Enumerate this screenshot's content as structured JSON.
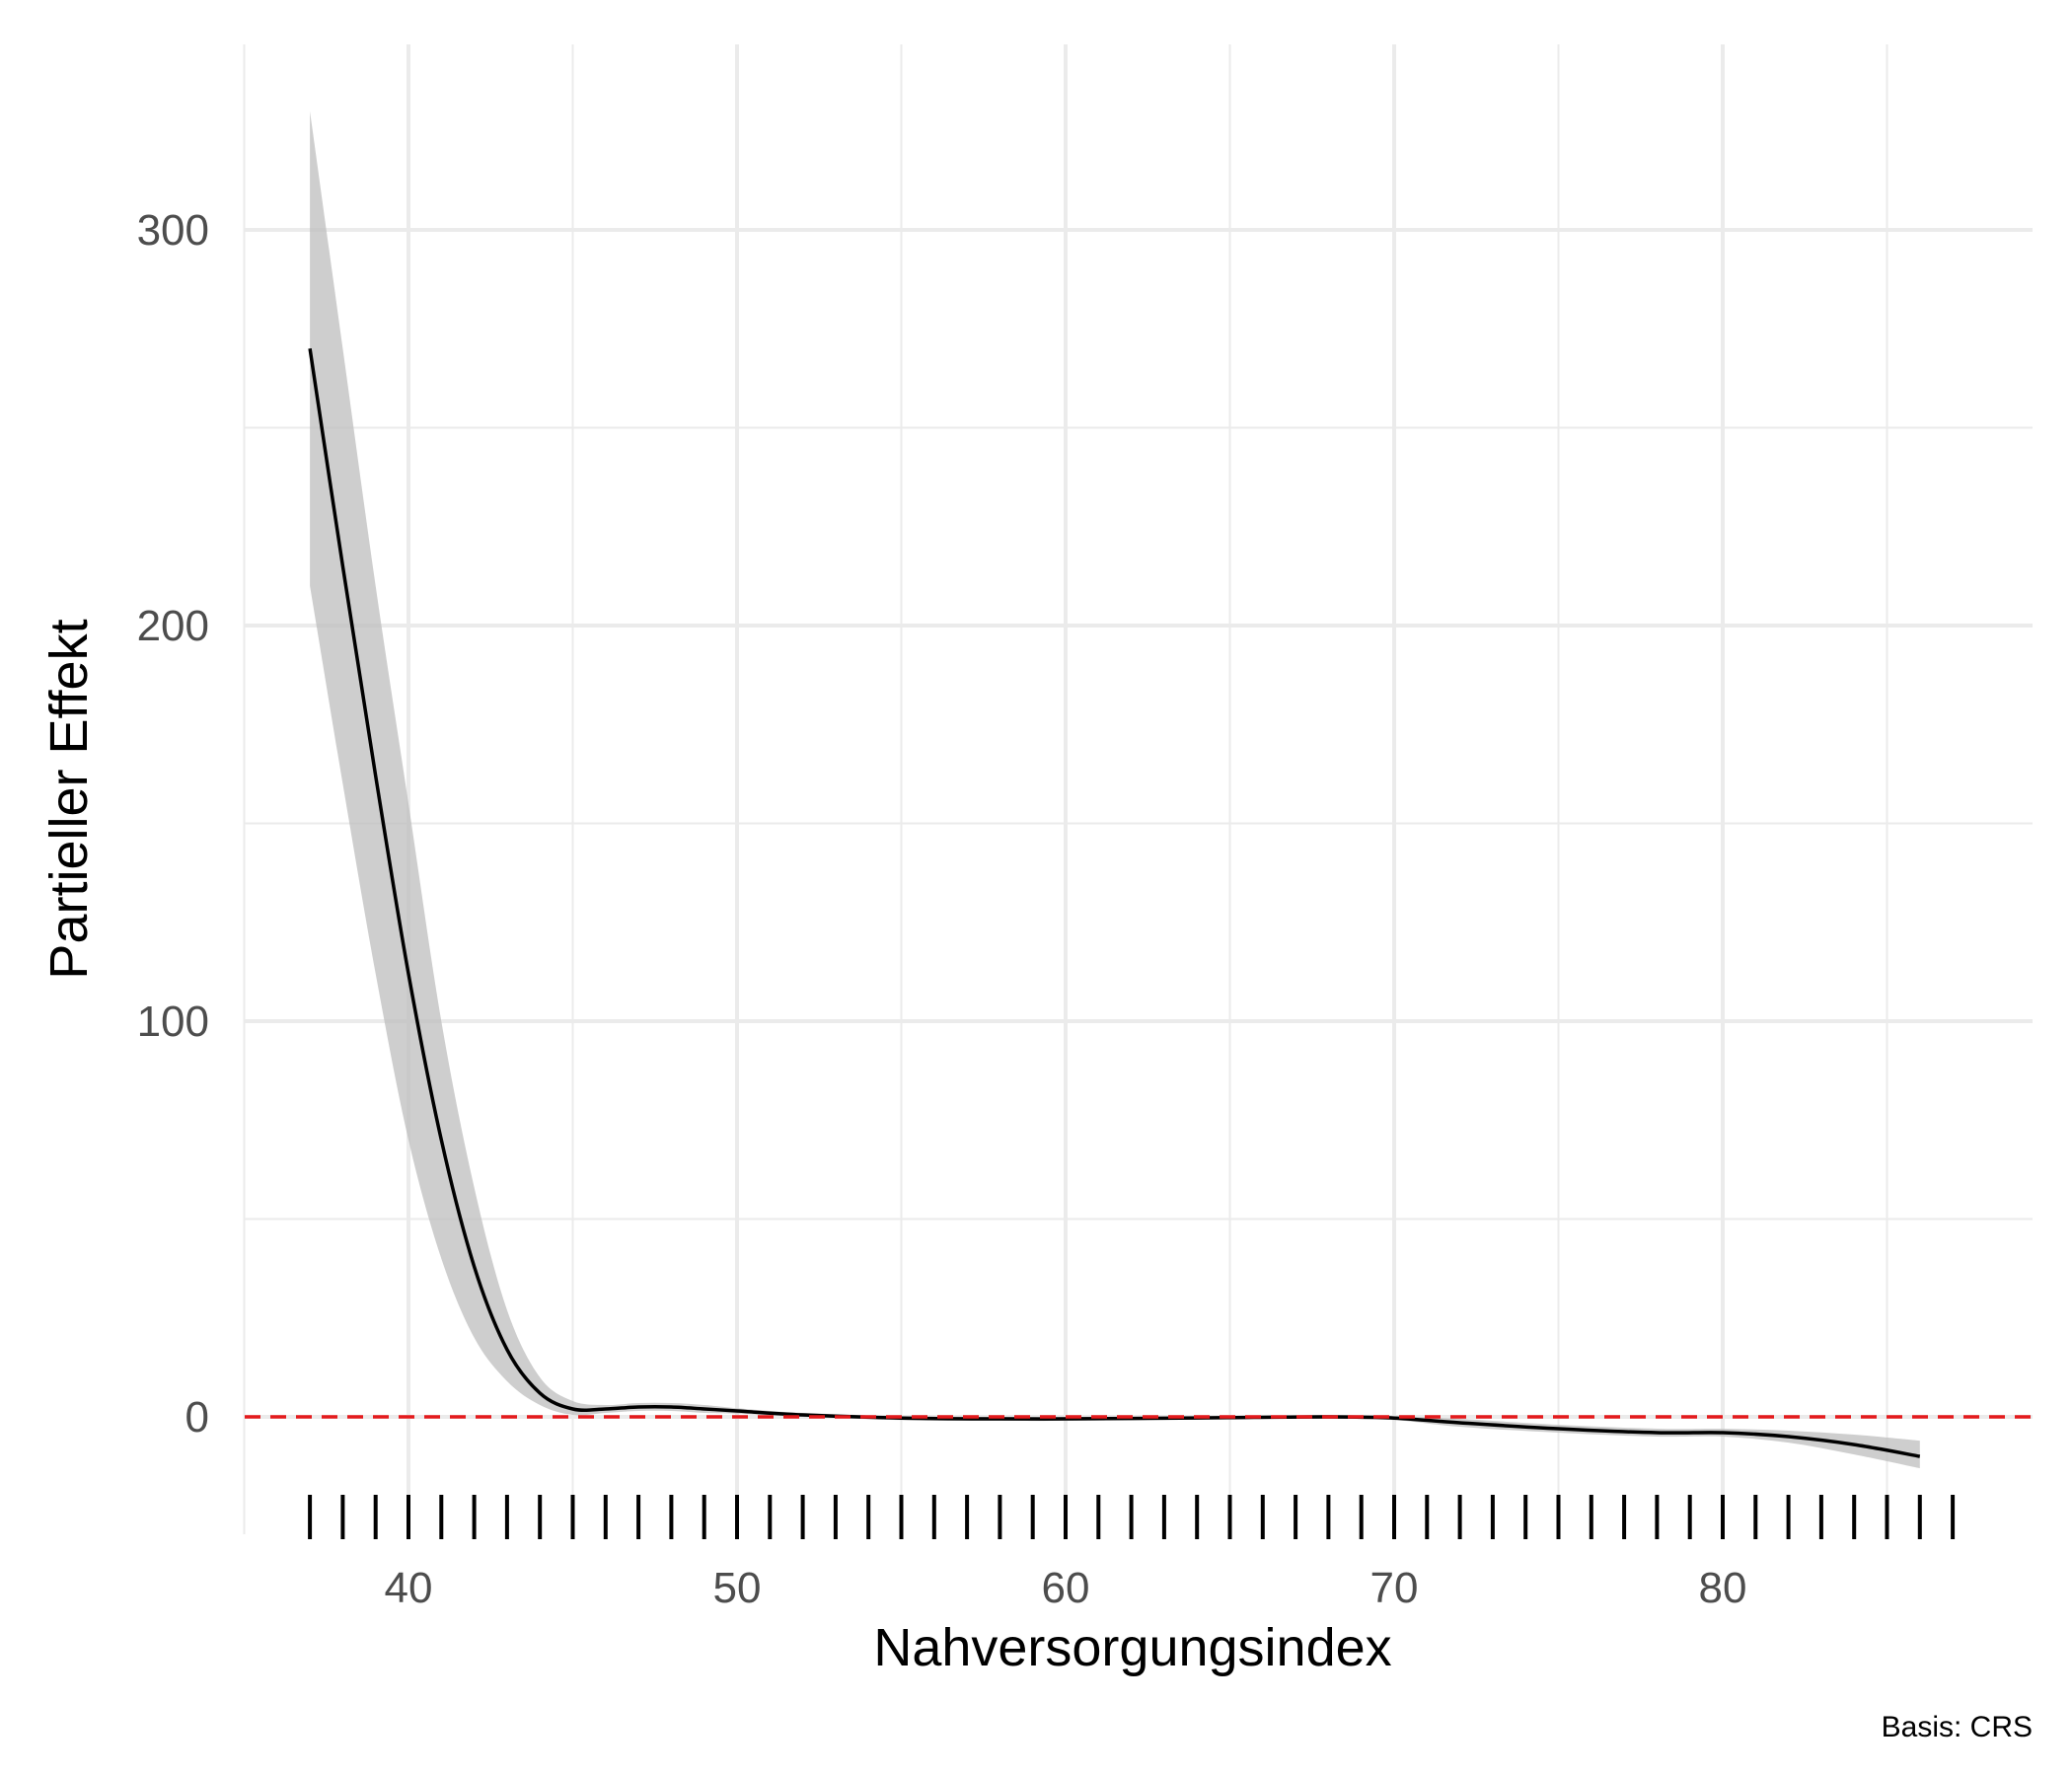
{
  "chart_data": {
    "type": "line",
    "xlabel": "Nahversorgungsindex",
    "ylabel": "Partieller Effekt",
    "caption": "Basis: CRS",
    "xlim": [
      35,
      87.5
    ],
    "ylim": [
      -20,
      330
    ],
    "x_ticks": [
      40,
      50,
      60,
      70,
      80
    ],
    "x_tick_labels": [
      "40",
      "50",
      "60",
      "70",
      "80"
    ],
    "y_ticks": [
      0,
      100,
      200,
      300
    ],
    "y_tick_labels": [
      "0",
      "100",
      "200",
      "300"
    ],
    "y_minor_ticks": [
      50,
      150,
      250
    ],
    "x_minor_ticks": [
      35,
      45,
      55,
      65,
      75,
      85
    ],
    "grid": true,
    "reference_line": {
      "y": 0,
      "style": "dashed",
      "color": "#e41a1c"
    },
    "series": [
      {
        "x": [
          37,
          38,
          39,
          40,
          41,
          42,
          43,
          44,
          45,
          46,
          47,
          48,
          49,
          50,
          52,
          55,
          58,
          60,
          62,
          65,
          68,
          70,
          72,
          75,
          78,
          80,
          82,
          84,
          86
        ],
        "y": [
          270,
          215,
          162,
          112,
          70,
          38,
          17,
          6,
          2,
          2,
          2.5,
          2.5,
          2,
          1.5,
          0.5,
          -0.3,
          -0.5,
          -0.5,
          -0.4,
          -0.2,
          0,
          -0.3,
          -1.5,
          -3,
          -4,
          -4,
          -5,
          -7,
          -10
        ],
        "lower": [
          210,
          160,
          112,
          70,
          40,
          20,
          9,
          3,
          0.5,
          1,
          1.5,
          1.5,
          1,
          0.8,
          0,
          -0.8,
          -1,
          -1,
          -0.8,
          -0.5,
          -0.5,
          -0.8,
          -2.5,
          -4,
          -5,
          -5,
          -6.5,
          -9.5,
          -13
        ],
        "upper": [
          330,
          270,
          210,
          155,
          100,
          58,
          27,
          10,
          4,
          3,
          3.5,
          3.5,
          3,
          2.2,
          1,
          0.2,
          0,
          0,
          0,
          0.1,
          0.5,
          0.2,
          -0.5,
          -2,
          -3,
          -3,
          -3.5,
          -4.5,
          -6
        ]
      }
    ],
    "colors": {
      "line": "#000000",
      "ribbon": "#bdbdbd",
      "grid": "#ebebeb",
      "rug": "#000000"
    },
    "rug_x": [
      37,
      38,
      39,
      40,
      41,
      42,
      43,
      44,
      45,
      46,
      47,
      48,
      49,
      50,
      51,
      52,
      53,
      54,
      55,
      56,
      57,
      58,
      59,
      60,
      61,
      62,
      63,
      64,
      65,
      66,
      67,
      68,
      69,
      70,
      71,
      72,
      73,
      74,
      75,
      76,
      77,
      78,
      79,
      80,
      81,
      82,
      83,
      84,
      85,
      86,
      87
    ]
  }
}
